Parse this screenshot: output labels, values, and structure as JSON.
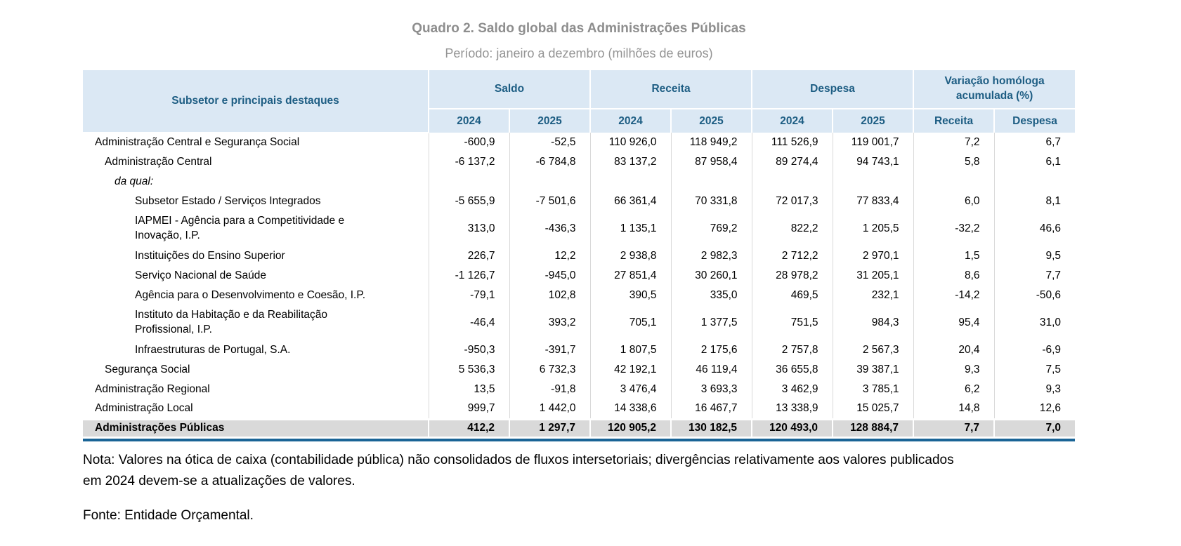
{
  "page": {
    "title": "Quadro 2. Saldo global das Administrações Públicas",
    "subtitle": "Período: janeiro a dezembro (milhões de euros)",
    "note": "Nota: Valores na ótica de caixa (contabilidade pública) não consolidados de fluxos intersetoriais; divergências relativamente aos valores publicados\nem 2024 devem-se a atualizações de valores.",
    "fonte": "Fonte: Entidade Orçamental."
  },
  "colors": {
    "header_bg": "#dbe8f4",
    "header_text": "#1d5d83",
    "grid_line": "#d9d9d9",
    "total_row_bg": "#d9d9d9",
    "bottom_rule": "#1a6496",
    "title_gray": "#8e8e8e"
  },
  "table": {
    "corner_header": "Subsetor e principais destaques",
    "groups": [
      {
        "label": "Saldo",
        "sub": [
          "2024",
          "2025"
        ]
      },
      {
        "label": "Receita",
        "sub": [
          "2024",
          "2025"
        ]
      },
      {
        "label": "Despesa",
        "sub": [
          "2024",
          "2025"
        ]
      },
      {
        "label": "Variação homóloga\nacumulada (%)",
        "sub": [
          "Receita",
          "Despesa"
        ]
      }
    ],
    "rows": [
      {
        "label": "Administração Central e Segurança Social",
        "indent": 0,
        "values": [
          "-600,9",
          "-52,5",
          "110 926,0",
          "118 949,2",
          "111 526,9",
          "119 001,7",
          "7,2",
          "6,7"
        ]
      },
      {
        "label": "Administração Central",
        "indent": 1,
        "values": [
          "-6 137,2",
          "-6 784,8",
          "83 137,2",
          "87 958,4",
          "89 274,4",
          "94 743,1",
          "5,8",
          "6,1"
        ]
      },
      {
        "label": "da qual:",
        "indent": 2,
        "italic": true,
        "values": [
          "",
          "",
          "",
          "",
          "",
          "",
          "",
          ""
        ]
      },
      {
        "label": "Subsetor Estado / Serviços Integrados",
        "indent": 3,
        "values": [
          "-5 655,9",
          "-7 501,6",
          "66 361,4",
          "70 331,8",
          "72 017,3",
          "77 833,4",
          "6,0",
          "8,1"
        ]
      },
      {
        "label": "IAPMEI - Agência para a Competitividade e\nInovação, I.P.",
        "indent": 3,
        "twoline": true,
        "values": [
          "313,0",
          "-436,3",
          "1 135,1",
          "769,2",
          "822,2",
          "1 205,5",
          "-32,2",
          "46,6"
        ]
      },
      {
        "label": "Instituições do Ensino Superior",
        "indent": 3,
        "values": [
          "226,7",
          "12,2",
          "2 938,8",
          "2 982,3",
          "2 712,2",
          "2 970,1",
          "1,5",
          "9,5"
        ]
      },
      {
        "label": "Serviço Nacional de Saúde",
        "indent": 3,
        "values": [
          "-1 126,7",
          "-945,0",
          "27 851,4",
          "30 260,1",
          "28 978,2",
          "31 205,1",
          "8,6",
          "7,7"
        ]
      },
      {
        "label": "Agência para o Desenvolvimento e Coesão, I.P.",
        "indent": 3,
        "values": [
          "-79,1",
          "102,8",
          "390,5",
          "335,0",
          "469,5",
          "232,1",
          "-14,2",
          "-50,6"
        ]
      },
      {
        "label": "Instituto da Habitação e da Reabilitação\nProfissional, I.P.",
        "indent": 3,
        "twoline": true,
        "values": [
          "-46,4",
          "393,2",
          "705,1",
          "1 377,5",
          "751,5",
          "984,3",
          "95,4",
          "31,0"
        ]
      },
      {
        "label": "Infraestruturas de Portugal, S.A.",
        "indent": 3,
        "values": [
          "-950,3",
          "-391,7",
          "1 807,5",
          "2 175,6",
          "2 757,8",
          "2 567,3",
          "20,4",
          "-6,9"
        ]
      },
      {
        "label": "Segurança Social",
        "indent": 1,
        "values": [
          "5 536,3",
          "6 732,3",
          "42 192,1",
          "46 119,4",
          "36 655,8",
          "39 387,1",
          "9,3",
          "7,5"
        ]
      },
      {
        "label": "Administração Regional",
        "indent": 0,
        "values": [
          "13,5",
          "-91,8",
          "3 476,4",
          "3 693,3",
          "3 462,9",
          "3 785,1",
          "6,2",
          "9,3"
        ]
      },
      {
        "label": "Administração Local",
        "indent": 0,
        "values": [
          "999,7",
          "1 442,0",
          "14 338,6",
          "16 467,7",
          "13 338,9",
          "15 025,7",
          "14,8",
          "12,6"
        ]
      },
      {
        "label": "Administrações Públicas",
        "indent": 0,
        "total": true,
        "values": [
          "412,2",
          "1 297,7",
          "120 905,2",
          "130 182,5",
          "120 493,0",
          "128 884,7",
          "7,7",
          "7,0"
        ]
      }
    ]
  }
}
